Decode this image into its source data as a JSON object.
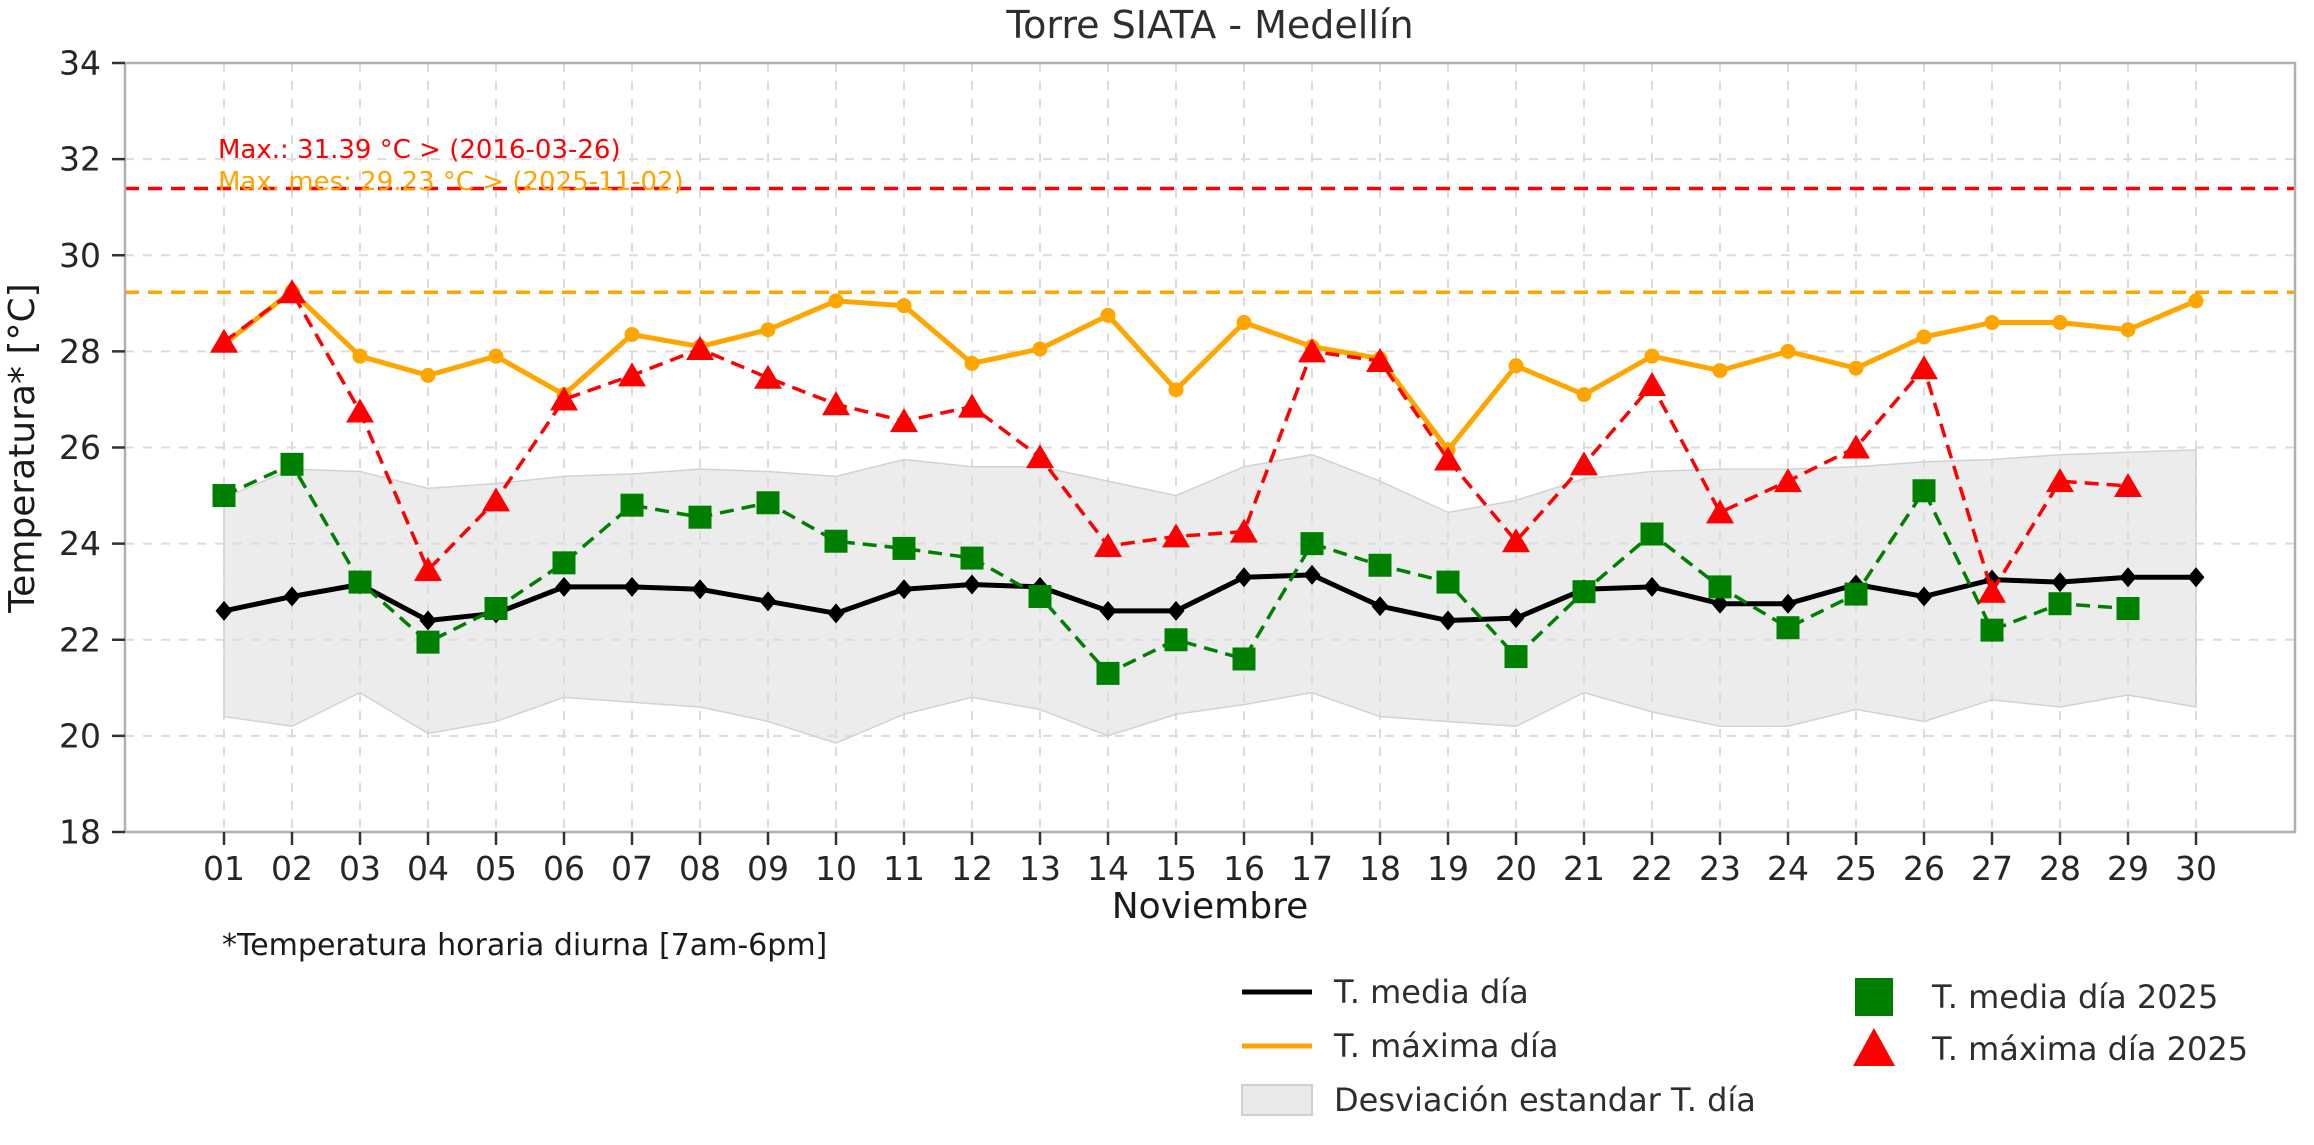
{
  "title": "Torre SIATA - Medellín",
  "axes": {
    "ylabel": "Temperatura* [°C]",
    "xlabel": "Noviembre"
  },
  "footnote": "*Temperatura horaria diurna [7am-6pm]",
  "annotations": {
    "record_max": {
      "text": "Max.: 31.39 °C  >  (2016-03-26)",
      "color": "#ff0000"
    },
    "month_max": {
      "text": "Max. mes: 29.23 °C  >  (2025-11-02)",
      "color": "#ffa500"
    }
  },
  "legend": {
    "entries": [
      {
        "label": "T. media día",
        "swatch": "black-line"
      },
      {
        "label": "T. máxima día",
        "swatch": "orange-line"
      },
      {
        "label": "Desviación estandar T. día",
        "swatch": "gray-patch"
      },
      {
        "label": "T. media día 2025",
        "swatch": "green-square"
      },
      {
        "label": "T. máxima día 2025",
        "swatch": "red-triangle"
      }
    ]
  },
  "chart_data": {
    "type": "line",
    "title": "Torre SIATA - Medellín",
    "xlabel": "Noviembre",
    "ylabel": "Temperatura* [°C]",
    "x_categories": [
      "01",
      "02",
      "03",
      "04",
      "05",
      "06",
      "07",
      "08",
      "09",
      "10",
      "11",
      "12",
      "13",
      "14",
      "15",
      "16",
      "17",
      "18",
      "19",
      "20",
      "21",
      "22",
      "23",
      "24",
      "25",
      "26",
      "27",
      "28",
      "29",
      "30"
    ],
    "ylim": [
      18,
      34
    ],
    "yticks": [
      18,
      20,
      22,
      24,
      26,
      28,
      30,
      32,
      34
    ],
    "grid": true,
    "legend_position": "bottom",
    "reference_lines": [
      {
        "key": "record-max-line",
        "value": 31.39,
        "color": "#ff0000",
        "date": "2016-03-26"
      },
      {
        "key": "month-max-line",
        "value": 29.23,
        "color": "#ffa500",
        "date": "2025-11-02"
      }
    ],
    "series": [
      {
        "key": "t-media-dia",
        "name": "T. media día",
        "color": "#000000",
        "style": "solid",
        "marker": "diamond",
        "values": [
          22.6,
          22.9,
          23.15,
          22.4,
          22.55,
          23.1,
          23.1,
          23.05,
          22.8,
          22.55,
          23.05,
          23.15,
          23.1,
          22.6,
          22.6,
          23.3,
          23.35,
          22.7,
          22.4,
          22.45,
          23.05,
          23.1,
          22.75,
          22.75,
          23.15,
          22.9,
          23.25,
          23.2,
          23.3,
          23.3
        ]
      },
      {
        "key": "t-maxima-dia",
        "name": "T. máxima día",
        "color": "#ffa500",
        "style": "solid",
        "marker": "circle",
        "values": [
          28.15,
          29.25,
          27.9,
          27.5,
          27.9,
          27.1,
          28.35,
          28.1,
          28.45,
          29.05,
          28.95,
          27.75,
          28.05,
          28.75,
          27.2,
          28.6,
          28.1,
          27.85,
          25.95,
          27.7,
          27.1,
          27.9,
          27.6,
          28.0,
          27.65,
          28.3,
          28.6,
          28.6,
          28.45,
          29.05
        ]
      },
      {
        "key": "t-media-dia-2025",
        "name": "T. media día 2025",
        "color": "#008000",
        "style": "dashed",
        "marker": "square",
        "values": [
          25.0,
          25.65,
          23.2,
          21.95,
          22.65,
          23.6,
          24.8,
          24.55,
          24.85,
          24.05,
          23.9,
          23.7,
          22.9,
          21.3,
          22.0,
          21.6,
          24.0,
          23.55,
          23.2,
          21.65,
          23.0,
          24.2,
          23.1,
          22.25,
          22.95,
          25.1,
          22.2,
          22.75,
          22.65
        ]
      },
      {
        "key": "t-maxima-dia-2025",
        "name": "T. máxima día 2025",
        "color": "#ff0000",
        "style": "dashed",
        "marker": "triangle",
        "values": [
          28.2,
          29.23,
          26.75,
          23.45,
          24.9,
          27.0,
          27.5,
          28.05,
          27.45,
          26.9,
          26.55,
          26.85,
          25.8,
          23.95,
          24.15,
          24.25,
          28.0,
          27.8,
          25.75,
          24.05,
          25.65,
          27.3,
          24.65,
          25.3,
          26.0,
          27.65,
          23.0,
          25.3,
          25.2
        ]
      }
    ],
    "band": {
      "name": "Desviación estandar T. día",
      "color": "#dcdcdc",
      "upper": [
        24.95,
        25.55,
        25.5,
        25.15,
        25.25,
        25.4,
        25.45,
        25.55,
        25.5,
        25.4,
        25.75,
        25.6,
        25.6,
        25.3,
        25.0,
        25.6,
        25.85,
        25.3,
        24.65,
        24.9,
        25.35,
        25.5,
        25.55,
        25.55,
        25.6,
        25.7,
        25.75,
        25.85,
        25.9,
        25.95
      ],
      "lower": [
        20.4,
        20.2,
        20.9,
        20.05,
        20.3,
        20.8,
        20.7,
        20.6,
        20.3,
        19.85,
        20.45,
        20.8,
        20.55,
        20.0,
        20.45,
        20.65,
        20.9,
        20.4,
        20.3,
        20.2,
        20.9,
        20.5,
        20.2,
        20.2,
        20.55,
        20.3,
        20.75,
        20.6,
        20.85,
        20.6
      ]
    }
  }
}
